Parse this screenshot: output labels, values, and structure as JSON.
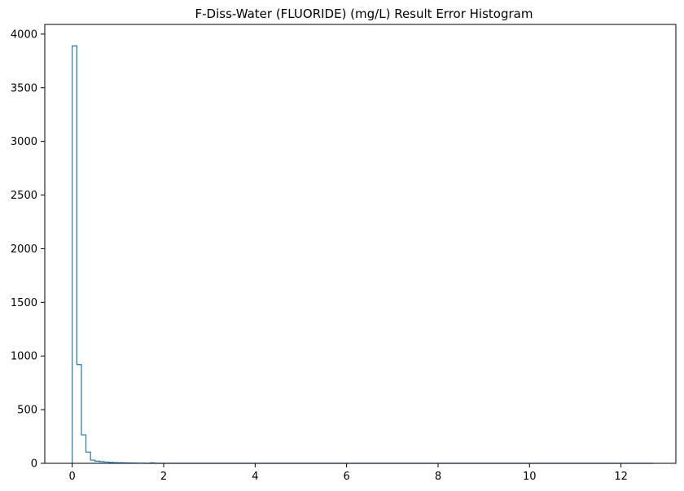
{
  "chart_data": {
    "type": "histogram",
    "title": "F-Diss-Water (FLUORIDE) (mg/L) Result Error Histogram",
    "xlabel": "",
    "ylabel": "",
    "xlim": [
      -0.6,
      13.2
    ],
    "ylim": [
      0,
      4090
    ],
    "x_ticks": [
      0,
      2,
      4,
      6,
      8,
      10,
      12
    ],
    "y_ticks": [
      0,
      500,
      1000,
      1500,
      2000,
      2500,
      3000,
      3500,
      4000
    ],
    "bin_start": 0,
    "bin_width": 0.1,
    "counts": [
      3890,
      920,
      265,
      105,
      30,
      20,
      15,
      12,
      8,
      6,
      5,
      4,
      3,
      2,
      1,
      1,
      0,
      4,
      0,
      0
    ],
    "x_end": 12.7,
    "histtype": "step",
    "series_color": "#1f77b4",
    "grid": false
  }
}
